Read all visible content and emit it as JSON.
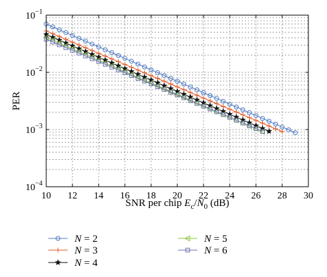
{
  "chart_data": {
    "type": "line",
    "xlabel": "SNR per chip E_c/N_0 (dB)",
    "xlabel_parts": {
      "prefix": "SNR per chip ",
      "E": "E",
      "c": "c",
      "slash": "/",
      "N": "N",
      "zero": "0",
      "suffix": " (dB)"
    },
    "ylabel": "PER",
    "xlim": [
      10,
      30
    ],
    "ylim": [
      0.0001,
      0.1
    ],
    "yscale": "log",
    "grid": true,
    "legend_placement": "bottom",
    "x_ticks": [
      "10",
      "12",
      "14",
      "16",
      "18",
      "20",
      "22",
      "24",
      "26",
      "28",
      "30"
    ],
    "y_ticks": [
      {
        "base": "10",
        "exp": "−1"
      },
      {
        "base": "10",
        "exp": "−2"
      },
      {
        "base": "10",
        "exp": "−3"
      },
      {
        "base": "10",
        "exp": "−4"
      }
    ],
    "series": [
      {
        "name": "N = 2",
        "label": "N",
        "eq": " = 2",
        "color": "#4f7bc4",
        "marker": "circle",
        "x": [
          10,
          29
        ],
        "y": [
          0.07,
          0.00088
        ]
      },
      {
        "name": "N = 3",
        "label": "N",
        "eq": " = 3",
        "color": "#e05a28",
        "marker": "plus",
        "x": [
          10,
          28
        ],
        "y": [
          0.053,
          0.00092
        ]
      },
      {
        "name": "N = 4",
        "label": "N",
        "eq": " = 4",
        "color": "#111111",
        "marker": "star",
        "x": [
          10,
          27
        ],
        "y": [
          0.046,
          0.00093
        ]
      },
      {
        "name": "N = 5",
        "label": "N",
        "eq": " = 5",
        "color": "#8dc63f",
        "marker": "triangle-left",
        "x": [
          10,
          26.5
        ],
        "y": [
          0.041,
          0.00092
        ]
      },
      {
        "name": "N = 6",
        "label": "N",
        "eq": " = 6",
        "color": "#6a6fb0",
        "marker": "square",
        "x": [
          10,
          26.5
        ],
        "y": [
          0.038,
          0.00093
        ]
      }
    ]
  }
}
